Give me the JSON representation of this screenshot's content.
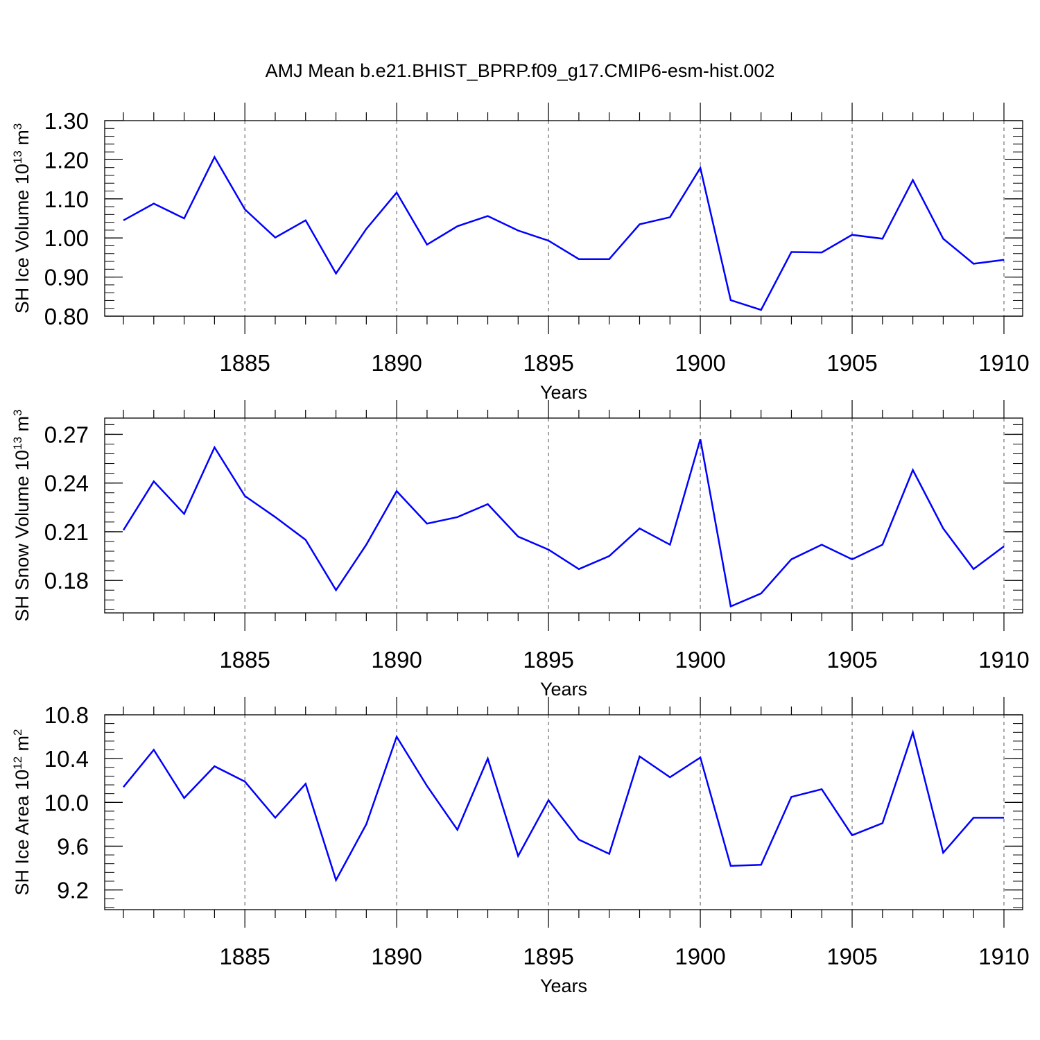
{
  "title": "AMJ Mean b.e21.BHIST_BPRP.f09_g17.CMIP6-esm-hist.002",
  "chart_data": [
    {
      "type": "line",
      "ylabel": {
        "text": "SH Ice Volume 10",
        "sup": "13",
        "unit": " m",
        "unit_sup": "3"
      },
      "xlabel": "Years",
      "xlim": [
        1881,
        1910
      ],
      "ylim": [
        0.8,
        1.3
      ],
      "xticks": [
        1885,
        1890,
        1895,
        1900,
        1905,
        1910
      ],
      "xtick_labels": [
        "1885",
        "1890",
        "1895",
        "1900",
        "1905",
        "1910"
      ],
      "yticks": [
        0.8,
        0.9,
        1.0,
        1.1,
        1.2,
        1.3
      ],
      "ytick_labels": [
        "0.80",
        "0.90",
        "1.00",
        "1.10",
        "1.20",
        "1.30"
      ],
      "grid": "vertical dashed at major x ticks",
      "color": "#0000ff",
      "x": [
        1881,
        1882,
        1883,
        1884,
        1885,
        1886,
        1887,
        1888,
        1889,
        1890,
        1891,
        1892,
        1893,
        1894,
        1895,
        1896,
        1897,
        1898,
        1899,
        1900,
        1901,
        1902,
        1903,
        1904,
        1905,
        1906,
        1907,
        1908,
        1909,
        1910
      ],
      "y": [
        1.045,
        1.088,
        1.05,
        1.207,
        1.073,
        1.001,
        1.045,
        0.909,
        1.023,
        1.116,
        0.983,
        1.03,
        1.056,
        1.019,
        0.993,
        0.946,
        0.946,
        1.035,
        1.053,
        1.179,
        0.841,
        0.816,
        0.964,
        0.963,
        1.008,
        0.998,
        1.148,
        0.998,
        0.934,
        0.944
      ]
    },
    {
      "type": "line",
      "ylabel": {
        "text": "SH Snow Volume 10",
        "sup": "13",
        "unit": " m",
        "unit_sup": "3"
      },
      "xlabel": "Years",
      "xlim": [
        1881,
        1910
      ],
      "ylim": [
        0.16,
        0.28
      ],
      "xticks": [
        1885,
        1890,
        1895,
        1900,
        1905,
        1910
      ],
      "xtick_labels": [
        "1885",
        "1890",
        "1895",
        "1900",
        "1905",
        "1910"
      ],
      "yticks": [
        0.18,
        0.21,
        0.24,
        0.27
      ],
      "ytick_labels": [
        "0.18",
        "0.21",
        "0.24",
        "0.27"
      ],
      "grid": "vertical dashed at major x ticks",
      "color": "#0000ff",
      "x": [
        1881,
        1882,
        1883,
        1884,
        1885,
        1886,
        1887,
        1888,
        1889,
        1890,
        1891,
        1892,
        1893,
        1894,
        1895,
        1896,
        1897,
        1898,
        1899,
        1900,
        1901,
        1902,
        1903,
        1904,
        1905,
        1906,
        1907,
        1908,
        1909,
        1910
      ],
      "y": [
        0.211,
        0.241,
        0.221,
        0.262,
        0.232,
        0.219,
        0.205,
        0.174,
        0.202,
        0.235,
        0.215,
        0.219,
        0.227,
        0.207,
        0.199,
        0.187,
        0.195,
        0.212,
        0.202,
        0.267,
        0.164,
        0.172,
        0.193,
        0.202,
        0.193,
        0.202,
        0.248,
        0.212,
        0.187,
        0.201
      ]
    },
    {
      "type": "line",
      "ylabel": {
        "text": "SH Ice Area 10",
        "sup": "12",
        "unit": " m",
        "unit_sup": "2"
      },
      "xlabel": "Years",
      "xlim": [
        1881,
        1910
      ],
      "ylim": [
        9.02,
        10.8
      ],
      "xticks": [
        1885,
        1890,
        1895,
        1900,
        1905,
        1910
      ],
      "xtick_labels": [
        "1885",
        "1890",
        "1895",
        "1900",
        "1905",
        "1910"
      ],
      "yticks": [
        9.2,
        9.6,
        10.0,
        10.4,
        10.8
      ],
      "ytick_labels": [
        "9.2",
        "9.6",
        "10.0",
        "10.4",
        "10.8"
      ],
      "grid": "vertical dashed at major x ticks",
      "color": "#0000ff",
      "x": [
        1881,
        1882,
        1883,
        1884,
        1885,
        1886,
        1887,
        1888,
        1889,
        1890,
        1891,
        1892,
        1893,
        1894,
        1895,
        1896,
        1897,
        1898,
        1899,
        1900,
        1901,
        1902,
        1903,
        1904,
        1905,
        1906,
        1907,
        1908,
        1909,
        1910
      ],
      "y": [
        10.14,
        10.48,
        10.04,
        10.33,
        10.19,
        9.86,
        10.17,
        9.29,
        9.8,
        10.6,
        10.15,
        9.75,
        10.4,
        9.51,
        10.02,
        9.66,
        9.53,
        10.42,
        10.23,
        10.41,
        9.42,
        9.43,
        10.05,
        10.12,
        9.7,
        9.81,
        10.64,
        9.54,
        9.86,
        9.86
      ]
    }
  ]
}
